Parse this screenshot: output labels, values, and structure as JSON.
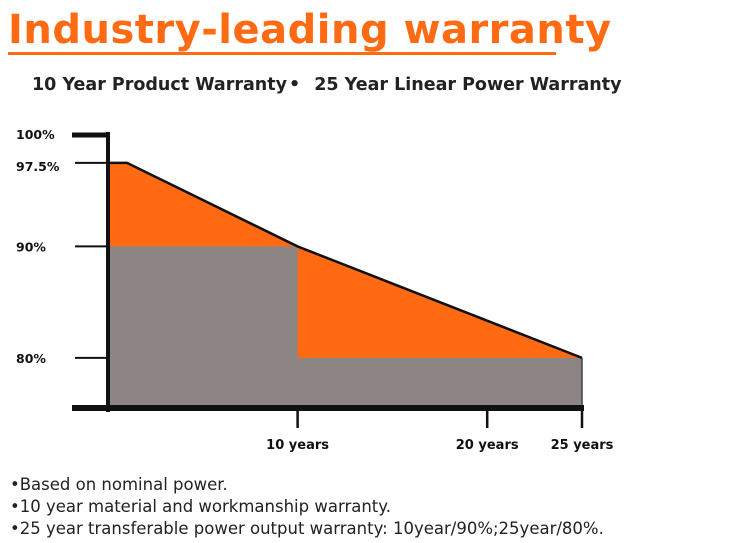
{
  "headline": {
    "text": "Industry-leading warranty",
    "color": "#ff6a13"
  },
  "subtitle": {
    "product_warranty": "10 Year Product Warranty",
    "bullet": "•",
    "power_warranty": "25 Year Linear Power Warranty"
  },
  "chart_data": {
    "type": "area",
    "title": "",
    "xlabel": "",
    "ylabel": "",
    "x_ticks": [
      {
        "year": 10,
        "label": "10 years"
      },
      {
        "year": 20,
        "label": "20 years"
      },
      {
        "year": 25,
        "label": "25 years"
      }
    ],
    "y_ticks": [
      {
        "value": 100,
        "label": "100%"
      },
      {
        "value": 97.5,
        "label": "97.5%"
      },
      {
        "value": 90,
        "label": "90%"
      },
      {
        "value": 80,
        "label": "80%"
      }
    ],
    "xlim": [
      0,
      25
    ],
    "ylim": [
      75.5,
      100
    ],
    "series": [
      {
        "values": [
          {
            "x": 0,
            "y": 97.5
          },
          {
            "x": 1,
            "y": 97.5
          },
          {
            "x": 10,
            "y": 90
          },
          {
            "x": 25,
            "y": 80
          }
        ],
        "color": "#ff6a13"
      },
      {
        "values": [
          {
            "x": 0,
            "y": 90
          },
          {
            "x": 10,
            "y": 90
          },
          {
            "x": 10,
            "y": 80
          },
          {
            "x": 25,
            "y": 80
          }
        ],
        "color": "#8c8583"
      }
    ],
    "grid": false,
    "axis_color": "#111111"
  },
  "notes": [
    "•Based on nominal power.",
    "•10 year material and workmanship warranty.",
    "•25 year transferable power output warranty: 10year/90%;25year/80%."
  ]
}
